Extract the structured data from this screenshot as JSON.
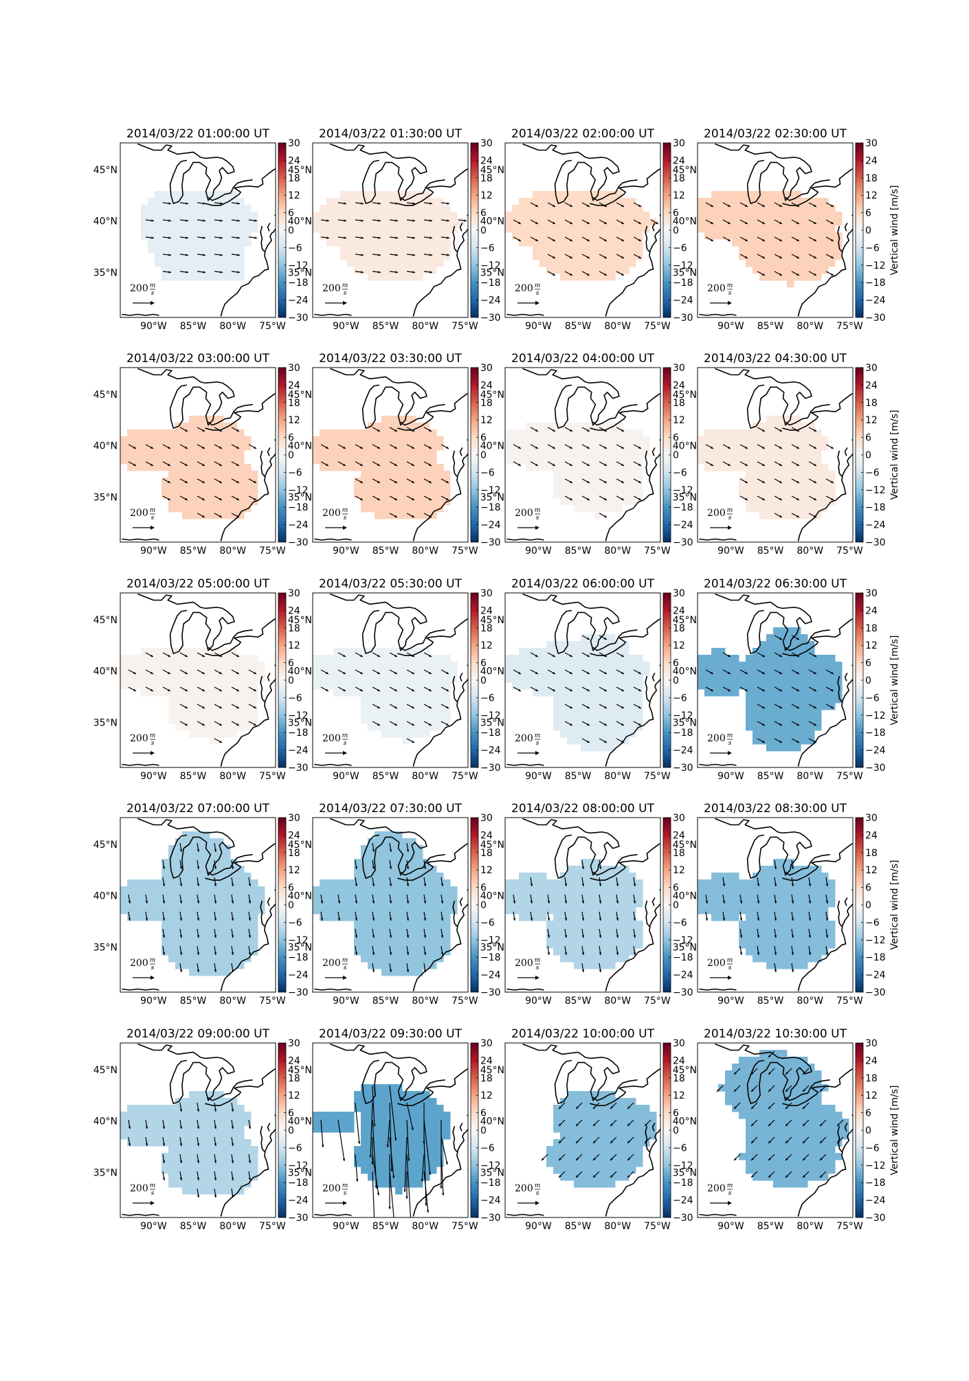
{
  "figure": {
    "colorbar_label": "Vertical wind [m/s]",
    "colorbar_ticks": [
      "30",
      "24",
      "18",
      "12",
      "6",
      "0",
      "−6",
      "−12",
      "−18",
      "−24",
      "−30"
    ],
    "colorbar_range": [
      -30,
      30
    ],
    "colormap": [
      "#67001f",
      "#b2182b",
      "#d6604d",
      "#f4a582",
      "#fddbc7",
      "#f7f7f7",
      "#d1e5f0",
      "#92c5de",
      "#4393c3",
      "#2166ac",
      "#053061"
    ],
    "lon_ticks": [
      "90°W",
      "85°W",
      "80°W",
      "75°W"
    ],
    "lat_ticks": [
      "45°N",
      "40°N",
      "35°N"
    ],
    "reference_arrow": {
      "value": "200",
      "numerator": "m",
      "denominator": "s"
    },
    "layout_rows": 5,
    "layout_cols": 4
  },
  "chart_data": {
    "type": "heatmap",
    "description_fields": [
      "time",
      "vertical_wind_mps",
      "arrow_dir"
    ],
    "panels": [
      {
        "title": "2014/03/22 01:00:00 UT",
        "vertical_wind_mps": -3,
        "shape": "A",
        "arrow_dir": "e"
      },
      {
        "title": "2014/03/22 01:30:00 UT",
        "vertical_wind_mps": 3,
        "shape": "B",
        "arrow_dir": "e"
      },
      {
        "title": "2014/03/22 02:00:00 UT",
        "vertical_wind_mps": 6,
        "shape": "B",
        "arrow_dir": "se"
      },
      {
        "title": "2014/03/22 02:30:00 UT",
        "vertical_wind_mps": 7,
        "shape": "C",
        "arrow_dir": "se"
      },
      {
        "title": "2014/03/22 03:00:00 UT",
        "vertical_wind_mps": 7,
        "shape": "D",
        "arrow_dir": "se"
      },
      {
        "title": "2014/03/22 03:30:00 UT",
        "vertical_wind_mps": 7,
        "shape": "D",
        "arrow_dir": "se"
      },
      {
        "title": "2014/03/22 04:00:00 UT",
        "vertical_wind_mps": 1,
        "shape": "E",
        "arrow_dir": "se"
      },
      {
        "title": "2014/03/22 04:30:00 UT",
        "vertical_wind_mps": 3,
        "shape": "D",
        "arrow_dir": "se"
      },
      {
        "title": "2014/03/22 05:00:00 UT",
        "vertical_wind_mps": 1,
        "shape": "E",
        "arrow_dir": "se"
      },
      {
        "title": "2014/03/22 05:30:00 UT",
        "vertical_wind_mps": -2,
        "shape": "E",
        "arrow_dir": "se"
      },
      {
        "title": "2014/03/22 06:00:00 UT",
        "vertical_wind_mps": -4,
        "shape": "F",
        "arrow_dir": "se"
      },
      {
        "title": "2014/03/22 06:30:00 UT",
        "vertical_wind_mps": -15,
        "shape": "G",
        "arrow_dir": "se"
      },
      {
        "title": "2014/03/22 07:00:00 UT",
        "vertical_wind_mps": -10,
        "shape": "H",
        "arrow_dir": "s"
      },
      {
        "title": "2014/03/22 07:30:00 UT",
        "vertical_wind_mps": -12,
        "shape": "H",
        "arrow_dir": "s"
      },
      {
        "title": "2014/03/22 08:00:00 UT",
        "vertical_wind_mps": -9,
        "shape": "I",
        "arrow_dir": "s"
      },
      {
        "title": "2014/03/22 08:30:00 UT",
        "vertical_wind_mps": -13,
        "shape": "I",
        "arrow_dir": "s"
      },
      {
        "title": "2014/03/22 09:00:00 UT",
        "vertical_wind_mps": -9,
        "shape": "D",
        "arrow_dir": "s"
      },
      {
        "title": "2014/03/22 09:30:00 UT",
        "vertical_wind_mps": -16,
        "shape": "J",
        "arrow_dir": "long"
      },
      {
        "title": "2014/03/22 10:00:00 UT",
        "vertical_wind_mps": -13,
        "shape": "K",
        "arrow_dir": "sw"
      },
      {
        "title": "2014/03/22 10:30:00 UT",
        "vertical_wind_mps": -14,
        "shape": "L",
        "arrow_dir": "sw"
      }
    ]
  }
}
